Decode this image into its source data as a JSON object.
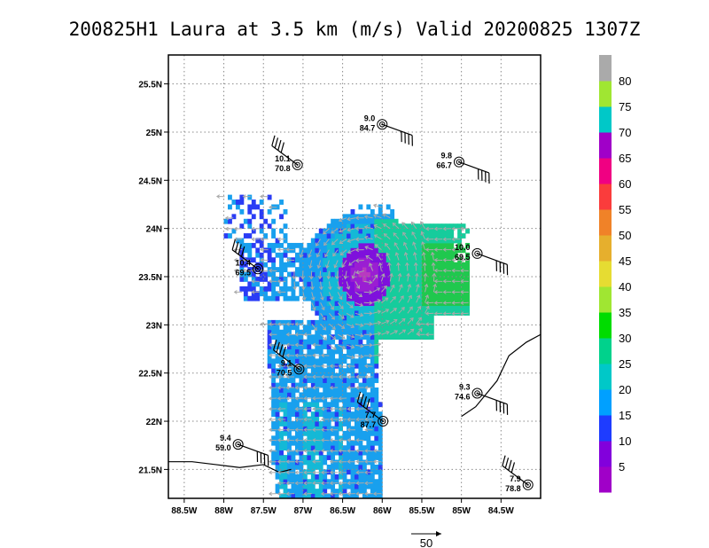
{
  "chart_data": {
    "type": "heatmap",
    "title": "200825H1 Laura at 3.5 km (m/s) Valid 20200825 1307Z",
    "x_ticks": [
      "88.5W",
      "88W",
      "87.5W",
      "87W",
      "86.5W",
      "86W",
      "85.5W",
      "85W",
      "84.5W"
    ],
    "y_ticks": [
      "25.5N",
      "25N",
      "24.5N",
      "24N",
      "23.5N",
      "23N",
      "22.5N",
      "22N",
      "21.5N"
    ],
    "xlim": [
      -88.7,
      -84.0
    ],
    "ylim": [
      21.2,
      25.8
    ],
    "grid": true,
    "colorbar": {
      "labels": [
        "5",
        "10",
        "15",
        "20",
        "25",
        "30",
        "35",
        "40",
        "45",
        "50",
        "55",
        "60",
        "65",
        "70",
        "75",
        "80"
      ],
      "colors": [
        "#a000c8",
        "#8200dc",
        "#1e3cff",
        "#00a0ff",
        "#00c8c8",
        "#00d28c",
        "#00dc00",
        "#a0e632",
        "#e6dc32",
        "#e6af2d",
        "#f08228",
        "#fa3c3c",
        "#f00082",
        "#a000c8",
        "#00c8c8",
        "#a0e632",
        "#aaaaaa"
      ]
    },
    "observations": [
      {
        "lon": -86.0,
        "lat": 25.08,
        "v1": "9.0",
        "v2": "84.7"
      },
      {
        "lon": -87.07,
        "lat": 24.66,
        "v1": "10.1",
        "v2": "70.8"
      },
      {
        "lon": -85.03,
        "lat": 24.69,
        "v1": "9.8",
        "v2": "66.7"
      },
      {
        "lon": -87.57,
        "lat": 23.58,
        "v1": "10.4",
        "v2": "69.5"
      },
      {
        "lon": -84.8,
        "lat": 23.74,
        "v1": "10.0",
        "v2": "69.5"
      },
      {
        "lon": -87.05,
        "lat": 22.54,
        "v1": "9.1",
        "v2": "70.5"
      },
      {
        "lon": -84.8,
        "lat": 22.29,
        "v1": "9.3",
        "v2": "74.6"
      },
      {
        "lon": -85.99,
        "lat": 22.0,
        "v1": "7.7",
        "v2": "87.7"
      },
      {
        "lon": -87.82,
        "lat": 21.76,
        "v1": "9.4",
        "v2": "59.0"
      },
      {
        "lon": -84.16,
        "lat": 21.34,
        "v1": "7.9",
        "v2": "78.8"
      }
    ],
    "reference_vector_label": "50"
  }
}
